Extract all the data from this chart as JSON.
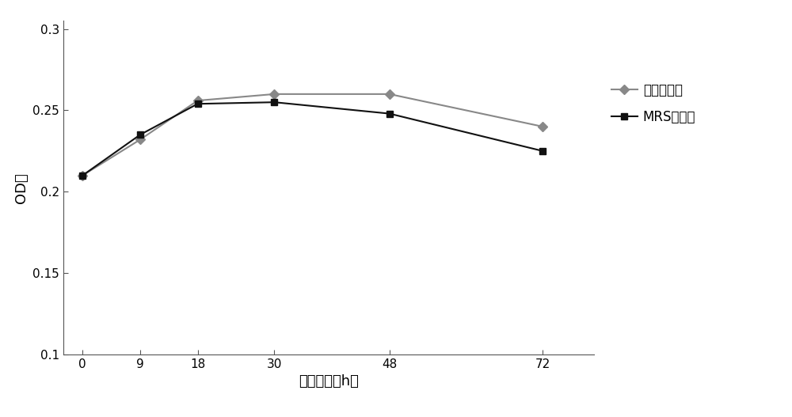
{
  "x": [
    0,
    9,
    18,
    30,
    48,
    72
  ],
  "series": [
    {
      "label": "优化培养基",
      "y": [
        0.21,
        0.232,
        0.256,
        0.26,
        0.26,
        0.24
      ],
      "color": "#888888",
      "marker": "D",
      "markersize": 6,
      "linewidth": 1.5,
      "zorder": 2
    },
    {
      "label": "MRS培养基",
      "y": [
        0.21,
        0.235,
        0.254,
        0.255,
        0.248,
        0.225
      ],
      "color": "#111111",
      "marker": "s",
      "markersize": 6,
      "linewidth": 1.5,
      "zorder": 3
    }
  ],
  "xlabel": "培养时间（h）",
  "ylabel": "OD値",
  "xlim": [
    -3,
    80
  ],
  "ylim": [
    0.1,
    0.305
  ],
  "yticks": [
    0.1,
    0.15,
    0.2,
    0.25,
    0.3
  ],
  "xticks": [
    0,
    9,
    18,
    30,
    48,
    72
  ],
  "legend_fontsize": 12,
  "axis_label_fontsize": 13,
  "tick_fontsize": 11,
  "background_color": "#ffffff",
  "grid": false
}
